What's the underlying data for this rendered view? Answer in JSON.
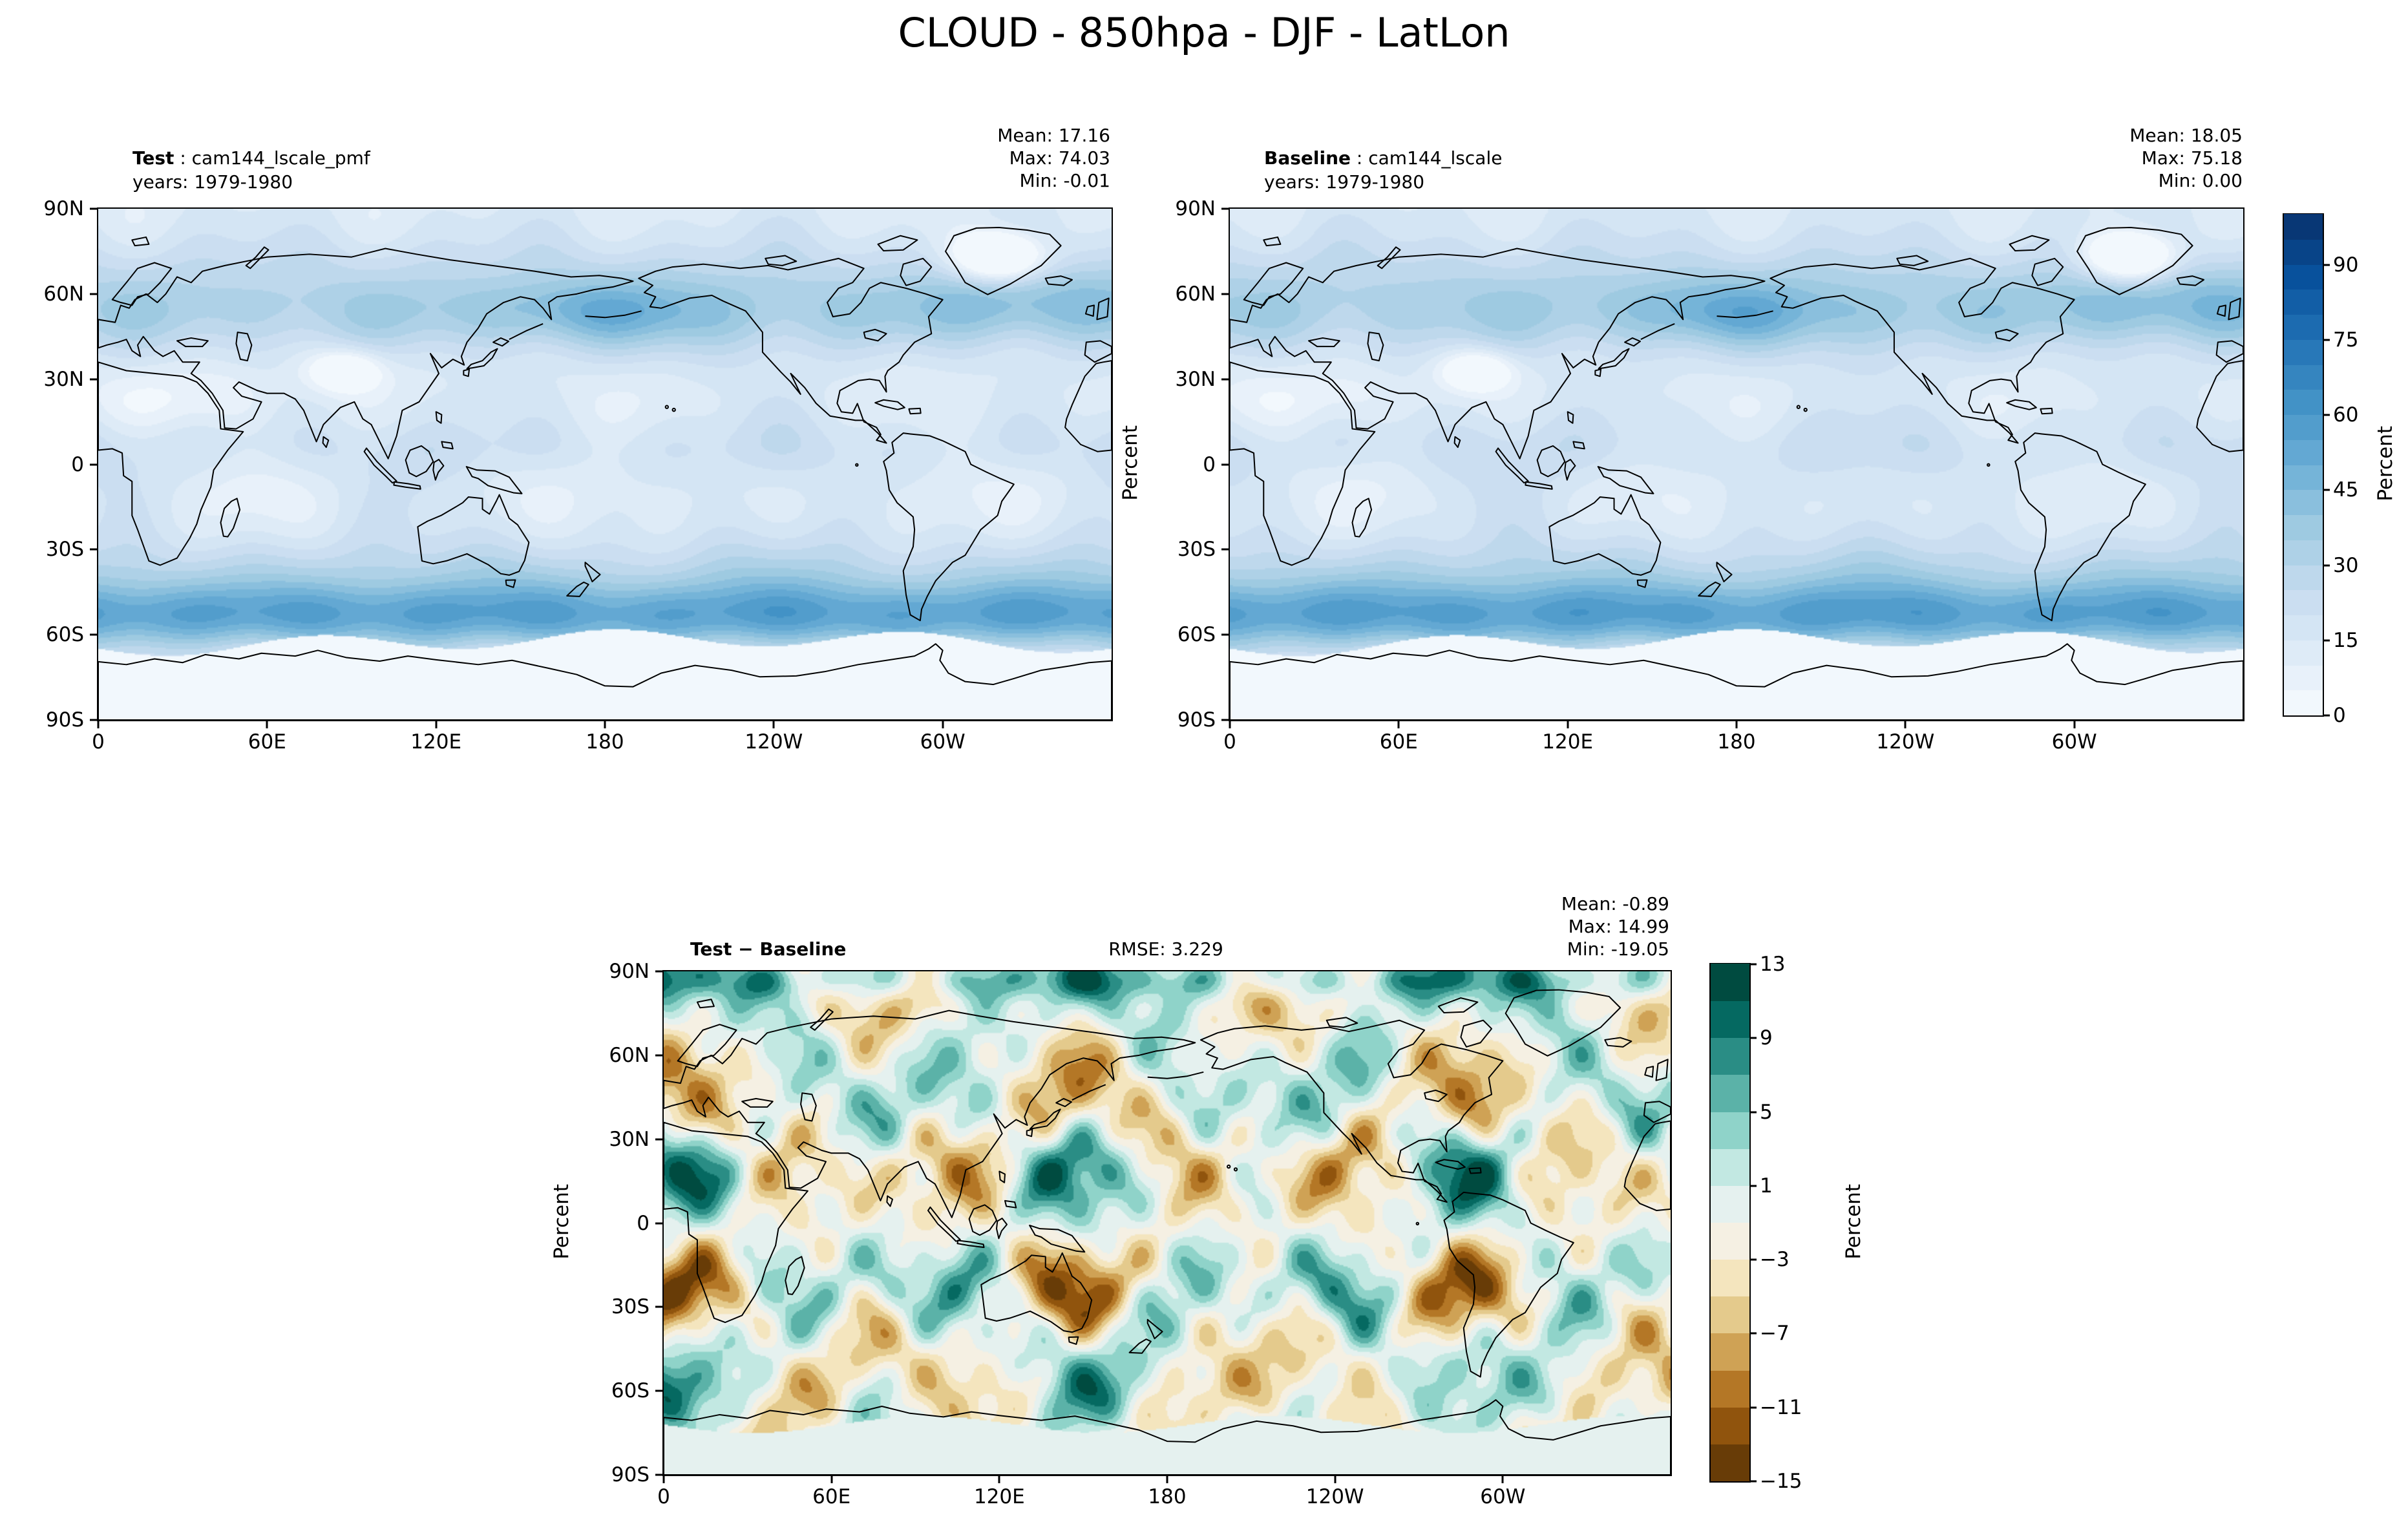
{
  "title": "CLOUD - 850hpa - DJF - LatLon",
  "panels": {
    "test": {
      "label": "Test",
      "sep": " : ",
      "name": "cam144_lscale_pmf",
      "years": "years: 1979-1980",
      "mean": "Mean: 17.16",
      "max": "Max: 74.03",
      "min": "Min: -0.01"
    },
    "baseline": {
      "label": "Baseline",
      "sep": " : ",
      "name": "cam144_lscale",
      "years": "years: 1979-1980",
      "mean": "Mean: 18.05",
      "max": "Max: 75.18",
      "min": "Min: 0.00",
      "ylabel": "Percent"
    },
    "diff": {
      "label": "Test − Baseline",
      "rmse": "RMSE: 3.229",
      "mean": "Mean: -0.89",
      "max": "Max: 14.99",
      "min": "Min: -19.05",
      "ylabel": "Percent"
    }
  },
  "axes": {
    "lat_ticks": [
      "90N",
      "60N",
      "30N",
      "0",
      "30S",
      "60S",
      "90S"
    ],
    "lon_ticks": [
      "0",
      "60E",
      "120E",
      "180",
      "120W",
      "60W"
    ]
  },
  "colorbars": {
    "main": {
      "label": "Percent",
      "ticks": [
        0,
        15,
        30,
        45,
        60,
        75,
        90
      ],
      "vmin": 0,
      "vmax": 100,
      "step": 5,
      "palette": "blues"
    },
    "diff": {
      "label": "Percent",
      "ticks": [
        -15,
        -11,
        -7,
        -3,
        1,
        5,
        9,
        13
      ],
      "vmin": -15,
      "vmax": 13,
      "step": 2,
      "palette": "brbg"
    }
  },
  "colors": {
    "background": "#ffffff",
    "coastline": "#000000",
    "blues": [
      "#f7fbff",
      "#deebf7",
      "#c6dbef",
      "#9ecae1",
      "#6baed6",
      "#4292c6",
      "#2171b5",
      "#08519c",
      "#08306b"
    ],
    "brbg": [
      "#543005",
      "#8c510a",
      "#bf812d",
      "#dfc27d",
      "#f6e8c3",
      "#f5f5f5",
      "#c7eae5",
      "#80cdc1",
      "#35978f",
      "#01665e",
      "#003c30"
    ]
  },
  "chart_data": {
    "type": "heatmap",
    "variant": "filled_contour_latlon_maps",
    "title": "CLOUD - 850hpa - DJF - LatLon",
    "variable": "CLOUD",
    "pressure_level": "850hpa",
    "season": "DJF",
    "projection": "LatLon (Pacific-centered, 0-360E)",
    "units": "Percent",
    "x_axis": {
      "ticks": [
        "0",
        "60E",
        "120E",
        "180",
        "120W",
        "60W"
      ],
      "range_deg": [
        0,
        360
      ]
    },
    "y_axis": {
      "ticks": [
        "90N",
        "60N",
        "30N",
        "0",
        "30S",
        "60S",
        "90S"
      ],
      "range_deg": [
        -90,
        90
      ]
    },
    "panels": [
      {
        "name": "Test",
        "dataset": "cam144_lscale_pmf",
        "years": "1979-1980",
        "stats": {
          "mean": 17.16,
          "max": 74.03,
          "min": -0.01
        },
        "colormap": "Blues",
        "colorbar_ticks": [
          0,
          15,
          30,
          45,
          60,
          75,
          90
        ]
      },
      {
        "name": "Baseline",
        "dataset": "cam144_lscale",
        "years": "1979-1980",
        "stats": {
          "mean": 18.05,
          "max": 75.18,
          "min": 0.0
        },
        "colormap": "Blues",
        "colorbar_ticks": [
          0,
          15,
          30,
          45,
          60,
          75,
          90
        ]
      },
      {
        "name": "Test − Baseline",
        "stats": {
          "mean": -0.89,
          "max": 14.99,
          "min": -19.05,
          "rmse": 3.229
        },
        "colormap": "BrBG",
        "colorbar_ticks": [
          13,
          9,
          5,
          1,
          -3,
          -7,
          -11,
          -15
        ]
      }
    ],
    "legend_position": "right colorbars",
    "grid": false
  }
}
